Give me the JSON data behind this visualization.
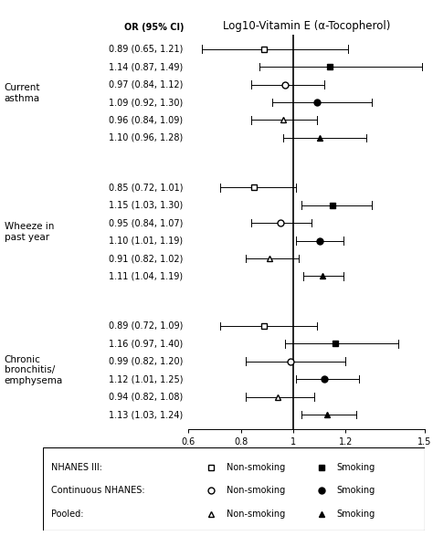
{
  "title": "Log10-Vitamin E (α-Tocopherol)",
  "or_label": "OR (95% CI)",
  "xlim": [
    0.6,
    1.5
  ],
  "xticks": [
    0.6,
    0.8,
    1.0,
    1.2,
    1.5
  ],
  "xticklabels": [
    "0.6",
    "0.8",
    "1",
    "1.2",
    "1.5"
  ],
  "vline": 1.0,
  "data": [
    {
      "or": 0.89,
      "ci_lo": 0.65,
      "ci_hi": 1.21,
      "marker": "square_open",
      "label": "0.89 (0.65, 1.21)"
    },
    {
      "or": 1.14,
      "ci_lo": 0.87,
      "ci_hi": 1.49,
      "marker": "square_filled",
      "label": "1.14 (0.87, 1.49)"
    },
    {
      "or": 0.97,
      "ci_lo": 0.84,
      "ci_hi": 1.12,
      "marker": "circle_open",
      "label": "0.97 (0.84, 1.12)"
    },
    {
      "or": 1.09,
      "ci_lo": 0.92,
      "ci_hi": 1.3,
      "marker": "circle_filled",
      "label": "1.09 (0.92, 1.30)"
    },
    {
      "or": 0.96,
      "ci_lo": 0.84,
      "ci_hi": 1.09,
      "marker": "triangle_open",
      "label": "0.96 (0.84, 1.09)"
    },
    {
      "or": 1.1,
      "ci_lo": 0.96,
      "ci_hi": 1.28,
      "marker": "triangle_filled",
      "label": "1.10 (0.96, 1.28)"
    },
    {
      "or": 0.85,
      "ci_lo": 0.72,
      "ci_hi": 1.01,
      "marker": "square_open",
      "label": "0.85 (0.72, 1.01)"
    },
    {
      "or": 1.15,
      "ci_lo": 1.03,
      "ci_hi": 1.3,
      "marker": "square_filled",
      "label": "1.15 (1.03, 1.30)"
    },
    {
      "or": 0.95,
      "ci_lo": 0.84,
      "ci_hi": 1.07,
      "marker": "circle_open",
      "label": "0.95 (0.84, 1.07)"
    },
    {
      "or": 1.1,
      "ci_lo": 1.01,
      "ci_hi": 1.19,
      "marker": "circle_filled",
      "label": "1.10 (1.01, 1.19)"
    },
    {
      "or": 0.91,
      "ci_lo": 0.82,
      "ci_hi": 1.02,
      "marker": "triangle_open",
      "label": "0.91 (0.82, 1.02)"
    },
    {
      "or": 1.11,
      "ci_lo": 1.04,
      "ci_hi": 1.19,
      "marker": "triangle_filled",
      "label": "1.11 (1.04, 1.19)"
    },
    {
      "or": 0.89,
      "ci_lo": 0.72,
      "ci_hi": 1.09,
      "marker": "square_open",
      "label": "0.89 (0.72, 1.09)"
    },
    {
      "or": 1.16,
      "ci_lo": 0.97,
      "ci_hi": 1.4,
      "marker": "square_filled",
      "label": "1.16 (0.97, 1.40)"
    },
    {
      "or": 0.99,
      "ci_lo": 0.82,
      "ci_hi": 1.2,
      "marker": "circle_open",
      "label": "0.99 (0.82, 1.20)"
    },
    {
      "or": 1.12,
      "ci_lo": 1.01,
      "ci_hi": 1.25,
      "marker": "circle_filled",
      "label": "1.12 (1.01, 1.25)"
    },
    {
      "or": 0.94,
      "ci_lo": 0.82,
      "ci_hi": 1.08,
      "marker": "triangle_open",
      "label": "0.94 (0.82, 1.08)"
    },
    {
      "or": 1.13,
      "ci_lo": 1.03,
      "ci_hi": 1.24,
      "marker": "triangle_filled",
      "label": "1.13 (1.03, 1.24)"
    }
  ],
  "groups": [
    {
      "name": "Current\nasthma",
      "rows": [
        0,
        1,
        2,
        3,
        4,
        5
      ]
    },
    {
      "name": "Wheeze in\npast year",
      "rows": [
        6,
        7,
        8,
        9,
        10,
        11
      ]
    },
    {
      "name": "Chronic\nbronchitis/\nemphysema",
      "rows": [
        12,
        13,
        14,
        15,
        16,
        17
      ]
    }
  ],
  "legend_rows": [
    {
      "label": "NHANES III:",
      "marker_l": "square_open",
      "marker_r": "square_filled"
    },
    {
      "label": "Continuous NHANES:",
      "marker_l": "circle_open",
      "marker_r": "circle_filled"
    },
    {
      "label": "Pooled:",
      "marker_l": "triangle_open",
      "marker_r": "triangle_filled"
    }
  ],
  "nonsmoking_label": "Non-smoking",
  "smoking_label": "Smoking",
  "fontsize_title": 8.5,
  "fontsize_or": 7,
  "fontsize_group": 7.5,
  "fontsize_xtick": 7,
  "fontsize_legend": 7,
  "markersize": 5,
  "background_color": "#ffffff"
}
